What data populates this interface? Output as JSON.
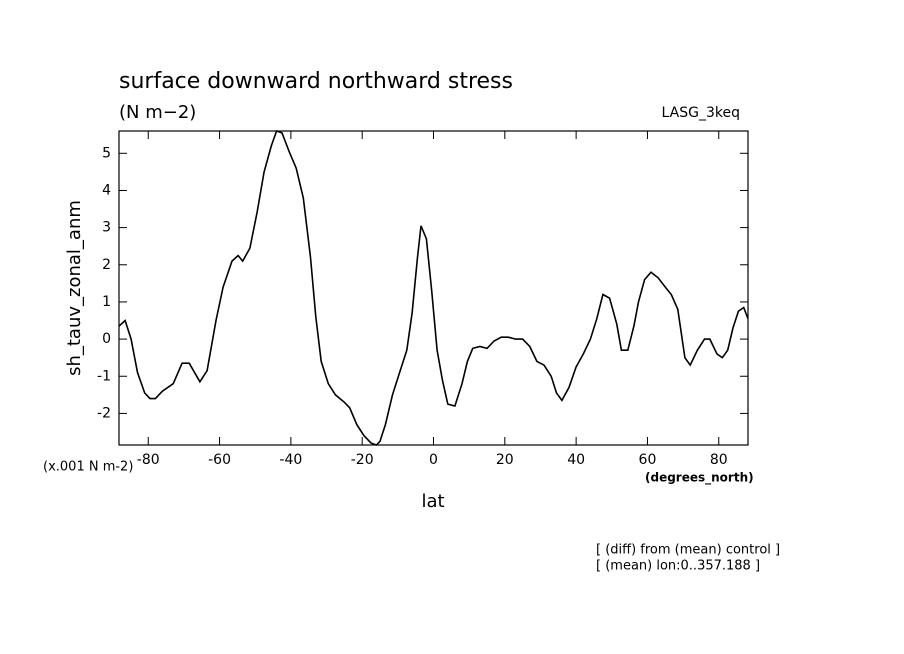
{
  "chart_data": {
    "type": "line",
    "title": "surface downward northward stress",
    "subtitle": "(N m−2)",
    "run_label": "LASG_3keq",
    "y_label": "sh_tauv_zonal_anm",
    "y_units": "(x.001 N m-2)",
    "x_label": "lat",
    "x_units": "(degrees_north)",
    "notes": [
      "[ (diff) from (mean) control ]",
      "[ (mean) lon:0..357.188 ]"
    ],
    "color": "#000000",
    "x": [
      -88.2,
      -86.5,
      -84.8,
      -83,
      -81,
      -79.5,
      -78,
      -76,
      -73,
      -70.5,
      -68.5,
      -65.5,
      -63.5,
      -61,
      -59,
      -56.5,
      -54.8,
      -53.5,
      -51.5,
      -49.5,
      -47.5,
      -45.5,
      -44,
      -42.5,
      -40.5,
      -38.5,
      -36.5,
      -34.5,
      -33,
      -31.5,
      -29.5,
      -27.5,
      -25,
      -23.5,
      -21.5,
      -19.5,
      -17.5,
      -16,
      -15,
      -13.5,
      -11.5,
      -9.5,
      -7.5,
      -6,
      -4.5,
      -3.5,
      -2,
      -0.5,
      1,
      2.5,
      4,
      6,
      8,
      9.5,
      11,
      13,
      15,
      17,
      19,
      21,
      23,
      25,
      27,
      29,
      31,
      33,
      34.5,
      36,
      38,
      40,
      42,
      44,
      45.8,
      47.5,
      49.4,
      51.4,
      52.7,
      54.5,
      56.2,
      57.5,
      59.2,
      61,
      63,
      65,
      66.7,
      68.5,
      70.5,
      72,
      74,
      76,
      77.5,
      79.5,
      81,
      82.5,
      84,
      85.5,
      87,
      88.2
    ],
    "values": [
      0.35,
      0.5,
      0.0,
      -0.9,
      -1.45,
      -1.6,
      -1.6,
      -1.4,
      -1.2,
      -0.65,
      -0.65,
      -1.15,
      -0.85,
      0.5,
      1.4,
      2.1,
      2.25,
      2.1,
      2.45,
      3.4,
      4.5,
      5.2,
      5.6,
      5.55,
      5.05,
      4.6,
      3.8,
      2.2,
      0.6,
      -0.6,
      -1.2,
      -1.5,
      -1.7,
      -1.85,
      -2.3,
      -2.6,
      -2.8,
      -2.85,
      -2.75,
      -2.3,
      -1.5,
      -0.9,
      -0.3,
      0.7,
      2.2,
      3.05,
      2.7,
      1.3,
      -0.3,
      -1.1,
      -1.75,
      -1.8,
      -1.2,
      -0.6,
      -0.25,
      -0.2,
      -0.25,
      -0.05,
      0.05,
      0.05,
      0.0,
      0.0,
      -0.2,
      -0.6,
      -0.7,
      -1.0,
      -1.45,
      -1.65,
      -1.3,
      -0.75,
      -0.4,
      0.0,
      0.55,
      1.2,
      1.1,
      0.4,
      -0.3,
      -0.3,
      0.35,
      1.0,
      1.6,
      1.8,
      1.65,
      1.4,
      1.2,
      0.8,
      -0.5,
      -0.7,
      -0.3,
      0.0,
      0.0,
      -0.4,
      -0.5,
      -0.3,
      0.3,
      0.75,
      0.85,
      0.55
    ],
    "xlim": [
      -88.2,
      88.2
    ],
    "xticks": [
      -80,
      -60,
      -40,
      -20,
      0,
      20,
      40,
      60,
      80
    ],
    "ylim": [
      -2.85,
      5.6
    ],
    "yticks": [
      -2,
      -1,
      0,
      1,
      2,
      3,
      4,
      5
    ]
  }
}
